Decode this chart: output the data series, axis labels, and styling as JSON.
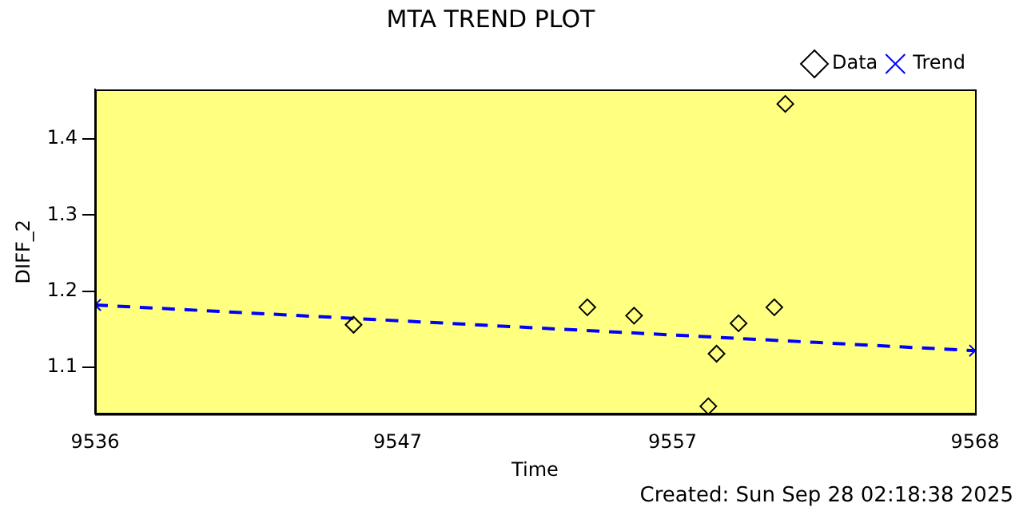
{
  "chart_data": {
    "type": "scatter",
    "title": "MTA TREND PLOT",
    "xlabel": "Time",
    "ylabel": "DIFF_2",
    "xlim": [
      9536,
      9568
    ],
    "xticks": [
      9536,
      9547,
      9557,
      9568
    ],
    "ylim": [
      1.039,
      1.465
    ],
    "yticks": [
      1.1,
      1.2,
      1.3,
      1.4
    ],
    "grid": false,
    "legend": "top right",
    "series": [
      {
        "name": "Data",
        "type": "scatter",
        "marker": "diamond",
        "color": "#000000",
        "x": [
          9545.4,
          9553.9,
          9555.6,
          9558.3,
          9558.6,
          9559.4,
          9560.7,
          9561.1
        ],
        "values": [
          1.156,
          1.179,
          1.168,
          1.049,
          1.118,
          1.158,
          1.179,
          1.446
        ]
      },
      {
        "name": "Trend",
        "type": "line",
        "marker": "cross",
        "line_style": "dashed",
        "color": "#0000ff",
        "x": [
          9536,
          9568
        ],
        "values": [
          1.182,
          1.122
        ]
      }
    ],
    "annotations": [
      "Created: Sun Sep 28 02:18:38 2025"
    ]
  }
}
